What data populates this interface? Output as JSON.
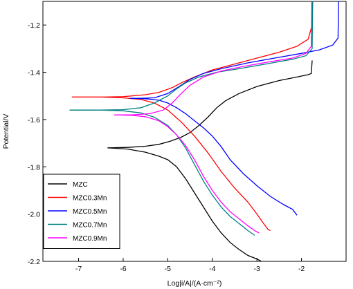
{
  "chart_data": {
    "type": "line",
    "xlabel": "Log|i/A|/(A·cm⁻²)",
    "ylabel": "Potential/V",
    "xlim": [
      -7.8,
      -1.0
    ],
    "ylim": [
      -2.2,
      -1.1
    ],
    "x_ticks": [
      -7,
      -6,
      -5,
      -4,
      -3,
      -2
    ],
    "y_ticks": [
      -2.2,
      -2.0,
      -1.8,
      -1.6,
      -1.4,
      -1.2
    ],
    "legend_position": "bottom-left",
    "grid": false,
    "series": [
      {
        "name": "MZC",
        "color": "#000000",
        "branches": [
          [
            [
              -6.35,
              -1.72
            ],
            [
              -5.9,
              -1.718
            ],
            [
              -5.5,
              -1.713
            ],
            [
              -5.2,
              -1.705
            ],
            [
              -4.95,
              -1.692
            ],
            [
              -4.7,
              -1.675
            ],
            [
              -4.5,
              -1.655
            ],
            [
              -4.3,
              -1.625
            ],
            [
              -4.1,
              -1.59
            ],
            [
              -3.9,
              -1.55
            ],
            [
              -3.7,
              -1.52
            ],
            [
              -3.4,
              -1.49
            ],
            [
              -3.0,
              -1.46
            ],
            [
              -2.5,
              -1.435
            ],
            [
              -2.1,
              -1.42
            ],
            [
              -1.85,
              -1.41
            ],
            [
              -1.78,
              -1.405
            ],
            [
              -1.76,
              -1.35
            ]
          ],
          [
            [
              -6.35,
              -1.72
            ],
            [
              -5.9,
              -1.725
            ],
            [
              -5.5,
              -1.738
            ],
            [
              -5.2,
              -1.755
            ],
            [
              -5.0,
              -1.77
            ],
            [
              -4.8,
              -1.8
            ],
            [
              -4.6,
              -1.85
            ],
            [
              -4.4,
              -1.91
            ],
            [
              -4.2,
              -1.97
            ],
            [
              -4.0,
              -2.03
            ],
            [
              -3.8,
              -2.08
            ],
            [
              -3.6,
              -2.12
            ],
            [
              -3.4,
              -2.15
            ],
            [
              -3.2,
              -2.175
            ],
            [
              -3.0,
              -2.19
            ],
            [
              -2.9,
              -2.2
            ]
          ]
        ]
      },
      {
        "name": "MZC0.3Mn",
        "color": "#ff0000",
        "branches": [
          [
            [
              -7.15,
              -1.505
            ],
            [
              -6.5,
              -1.505
            ],
            [
              -6.0,
              -1.503
            ],
            [
              -5.5,
              -1.495
            ],
            [
              -5.2,
              -1.485
            ],
            [
              -4.9,
              -1.465
            ],
            [
              -4.7,
              -1.445
            ],
            [
              -4.4,
              -1.42
            ],
            [
              -4.0,
              -1.39
            ],
            [
              -3.5,
              -1.365
            ],
            [
              -3.0,
              -1.34
            ],
            [
              -2.5,
              -1.315
            ],
            [
              -2.1,
              -1.29
            ],
            [
              -1.85,
              -1.26
            ],
            [
              -1.76,
              -1.2
            ],
            [
              -1.75,
              -1.1
            ]
          ],
          [
            [
              -7.15,
              -1.505
            ],
            [
              -6.5,
              -1.505
            ],
            [
              -6.0,
              -1.508
            ],
            [
              -5.6,
              -1.515
            ],
            [
              -5.3,
              -1.53
            ],
            [
              -5.0,
              -1.56
            ],
            [
              -4.7,
              -1.61
            ],
            [
              -4.4,
              -1.67
            ],
            [
              -4.1,
              -1.74
            ],
            [
              -3.8,
              -1.82
            ],
            [
              -3.5,
              -1.89
            ],
            [
              -3.2,
              -1.95
            ],
            [
              -3.0,
              -2.0
            ],
            [
              -2.85,
              -2.04
            ],
            [
              -2.75,
              -2.065
            ],
            [
              -2.7,
              -2.07
            ]
          ]
        ]
      },
      {
        "name": "MZC0.5Mn",
        "color": "#0000ff",
        "branches": [
          [
            [
              -5.85,
              -1.51
            ],
            [
              -5.6,
              -1.51
            ],
            [
              -5.3,
              -1.508
            ],
            [
              -5.0,
              -1.49
            ],
            [
              -4.7,
              -1.455
            ],
            [
              -4.5,
              -1.43
            ],
            [
              -4.2,
              -1.405
            ],
            [
              -3.8,
              -1.385
            ],
            [
              -3.2,
              -1.36
            ],
            [
              -2.6,
              -1.34
            ],
            [
              -2.0,
              -1.32
            ],
            [
              -1.6,
              -1.305
            ],
            [
              -1.3,
              -1.285
            ],
            [
              -1.18,
              -1.255
            ],
            [
              -1.17,
              -1.1
            ]
          ],
          [
            [
              -5.85,
              -1.51
            ],
            [
              -5.5,
              -1.512
            ],
            [
              -5.2,
              -1.518
            ],
            [
              -5.0,
              -1.53
            ],
            [
              -4.8,
              -1.55
            ],
            [
              -4.6,
              -1.575
            ],
            [
              -4.4,
              -1.605
            ],
            [
              -4.2,
              -1.635
            ],
            [
              -4.0,
              -1.67
            ],
            [
              -3.8,
              -1.715
            ],
            [
              -3.6,
              -1.77
            ],
            [
              -3.3,
              -1.83
            ],
            [
              -3.0,
              -1.88
            ],
            [
              -2.7,
              -1.925
            ],
            [
              -2.4,
              -1.96
            ],
            [
              -2.2,
              -1.98
            ],
            [
              -2.1,
              -2.005
            ]
          ]
        ]
      },
      {
        "name": "MZC0.7Mn",
        "color": "#008080",
        "branches": [
          [
            [
              -7.2,
              -1.56
            ],
            [
              -6.5,
              -1.56
            ],
            [
              -6.0,
              -1.558
            ],
            [
              -5.6,
              -1.55
            ],
            [
              -5.3,
              -1.53
            ],
            [
              -5.0,
              -1.5
            ],
            [
              -4.8,
              -1.47
            ],
            [
              -4.6,
              -1.445
            ],
            [
              -4.3,
              -1.42
            ],
            [
              -3.9,
              -1.4
            ],
            [
              -3.4,
              -1.385
            ],
            [
              -2.8,
              -1.365
            ],
            [
              -2.2,
              -1.345
            ],
            [
              -1.9,
              -1.33
            ],
            [
              -1.76,
              -1.3
            ],
            [
              -1.75,
              -1.1
            ]
          ],
          [
            [
              -7.2,
              -1.56
            ],
            [
              -6.5,
              -1.56
            ],
            [
              -6.0,
              -1.563
            ],
            [
              -5.6,
              -1.572
            ],
            [
              -5.3,
              -1.59
            ],
            [
              -5.0,
              -1.625
            ],
            [
              -4.8,
              -1.665
            ],
            [
              -4.6,
              -1.72
            ],
            [
              -4.4,
              -1.79
            ],
            [
              -4.2,
              -1.86
            ],
            [
              -4.0,
              -1.92
            ],
            [
              -3.8,
              -1.97
            ],
            [
              -3.6,
              -2.01
            ],
            [
              -3.4,
              -2.04
            ],
            [
              -3.2,
              -2.07
            ],
            [
              -3.05,
              -2.09
            ]
          ]
        ]
      },
      {
        "name": "MZC0.9Mn",
        "color": "#ff00ff",
        "branches": [
          [
            [
              -6.2,
              -1.58
            ],
            [
              -5.8,
              -1.58
            ],
            [
              -5.4,
              -1.575
            ],
            [
              -5.1,
              -1.56
            ],
            [
              -4.9,
              -1.53
            ],
            [
              -4.7,
              -1.49
            ],
            [
              -4.5,
              -1.455
            ],
            [
              -4.2,
              -1.42
            ],
            [
              -3.8,
              -1.395
            ],
            [
              -3.3,
              -1.375
            ],
            [
              -2.7,
              -1.355
            ],
            [
              -2.2,
              -1.34
            ],
            [
              -1.9,
              -1.32
            ],
            [
              -1.78,
              -1.29
            ],
            [
              -1.77,
              -1.1
            ]
          ],
          [
            [
              -6.2,
              -1.58
            ],
            [
              -5.8,
              -1.582
            ],
            [
              -5.5,
              -1.588
            ],
            [
              -5.2,
              -1.605
            ],
            [
              -5.0,
              -1.63
            ],
            [
              -4.8,
              -1.665
            ],
            [
              -4.6,
              -1.71
            ],
            [
              -4.4,
              -1.77
            ],
            [
              -4.2,
              -1.84
            ],
            [
              -4.0,
              -1.9
            ],
            [
              -3.8,
              -1.95
            ],
            [
              -3.6,
              -1.99
            ],
            [
              -3.4,
              -2.02
            ],
            [
              -3.2,
              -2.05
            ],
            [
              -3.05,
              -2.07
            ],
            [
              -2.95,
              -2.08
            ]
          ]
        ]
      }
    ]
  }
}
